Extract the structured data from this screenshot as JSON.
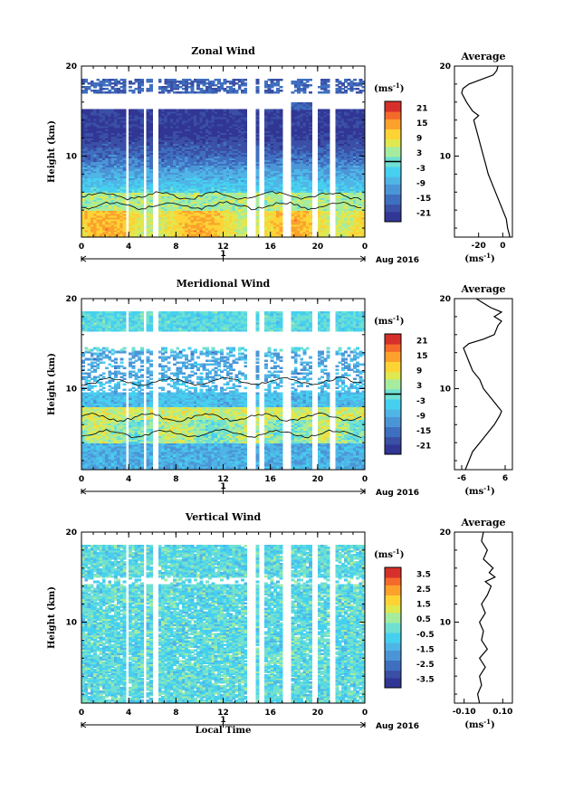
{
  "chart_data": [
    {
      "type": "heatmap",
      "title": "Zonal Wind",
      "xlabel": "",
      "ylabel": "Height (km)",
      "x_ticks": [
        "0",
        "4",
        "8",
        "12",
        "16",
        "20",
        "0"
      ],
      "y_ticks": [
        "20",
        "10"
      ],
      "xlim": [
        0,
        24
      ],
      "ylim": [
        1,
        20
      ],
      "date_axis": {
        "label": "1",
        "month_label": "Aug 2016"
      },
      "colorbar": {
        "unit_label": "(ms",
        "unit_exp": "-1",
        "unit_close": ")",
        "tick_labels": [
          "21",
          "15",
          "9",
          "3",
          "-3",
          "-9",
          "-15",
          "-21"
        ],
        "range": [
          -24,
          24
        ],
        "zero_line": true
      },
      "profile_plot": {
        "title": "Average",
        "xlabel": "(ms",
        "xlabel_exp": "-1",
        "xlabel_close": ")",
        "x_ticks": [
          "-20",
          "0"
        ],
        "xlim": [
          -40,
          8
        ],
        "y_ticks": [
          "20",
          "10"
        ],
        "profile": [
          [
            1,
            6
          ],
          [
            1.5,
            5
          ],
          [
            2,
            4
          ],
          [
            3,
            3
          ],
          [
            4,
            0
          ],
          [
            5,
            -3
          ],
          [
            6,
            -6
          ],
          [
            7,
            -9
          ],
          [
            8,
            -12
          ],
          [
            9,
            -14
          ],
          [
            10,
            -16
          ],
          [
            11,
            -18
          ],
          [
            12,
            -20
          ],
          [
            13,
            -22
          ],
          [
            14,
            -24
          ],
          [
            14.5,
            -20
          ],
          [
            15,
            -25
          ],
          [
            16,
            -30
          ],
          [
            17,
            -34
          ],
          [
            17.5,
            -33
          ],
          [
            18,
            -28
          ],
          [
            18.5,
            -18
          ],
          [
            19,
            -8
          ],
          [
            19.5,
            -5
          ],
          [
            20,
            -4
          ]
        ]
      },
      "contours": true
    },
    {
      "type": "heatmap",
      "title": "Meridional Wind",
      "xlabel": "",
      "ylabel": "Height (km)",
      "x_ticks": [
        "0",
        "4",
        "8",
        "12",
        "16",
        "20",
        "0"
      ],
      "y_ticks": [
        "20",
        "10"
      ],
      "xlim": [
        0,
        24
      ],
      "ylim": [
        1,
        20
      ],
      "date_axis": {
        "label": "1",
        "month_label": "Aug 2016"
      },
      "colorbar": {
        "unit_label": "(ms",
        "unit_exp": "-1",
        "unit_close": ")",
        "tick_labels": [
          "21",
          "15",
          "9",
          "3",
          "-3",
          "-9",
          "-15",
          "-21"
        ],
        "range": [
          -24,
          24
        ],
        "zero_line": true
      },
      "profile_plot": {
        "title": "Average",
        "xlabel": "(ms",
        "xlabel_exp": "-1",
        "xlabel_close": ")",
        "x_ticks": [
          "-6",
          "6"
        ],
        "xlim": [
          -8,
          8
        ],
        "y_ticks": [
          "20",
          "10"
        ],
        "profile": [
          [
            1,
            -5
          ],
          [
            2,
            -4
          ],
          [
            3,
            -3
          ],
          [
            4,
            -1
          ],
          [
            5,
            1
          ],
          [
            6,
            3
          ],
          [
            7,
            4.5
          ],
          [
            7.5,
            5
          ],
          [
            8,
            4
          ],
          [
            9,
            2
          ],
          [
            10,
            0
          ],
          [
            11,
            -1
          ],
          [
            12,
            -3
          ],
          [
            13,
            -4
          ],
          [
            14,
            -5
          ],
          [
            14.5,
            -5.5
          ],
          [
            15,
            -4
          ],
          [
            15.5,
            0
          ],
          [
            16,
            3
          ],
          [
            17,
            4
          ],
          [
            17.5,
            5
          ],
          [
            18,
            3
          ],
          [
            18.5,
            5
          ],
          [
            19,
            2
          ],
          [
            19.5,
            0
          ],
          [
            20,
            -2
          ]
        ]
      },
      "contours": true
    },
    {
      "type": "heatmap",
      "title": "Vertical Wind",
      "xlabel": "Local Time",
      "ylabel": "Height (km)",
      "x_ticks": [
        "0",
        "4",
        "8",
        "12",
        "16",
        "20",
        "0"
      ],
      "y_ticks": [
        "20",
        "10"
      ],
      "xlim": [
        0,
        24
      ],
      "ylim": [
        1,
        20
      ],
      "date_axis": {
        "label": "1",
        "month_label": "Aug 2016"
      },
      "colorbar": {
        "unit_label": "(ms",
        "unit_exp": "-1",
        "unit_close": ")",
        "tick_labels": [
          "3.5",
          "2.5",
          "1.5",
          "0.5",
          "-0.5",
          "-1.5",
          "-2.5",
          "-3.5"
        ],
        "range": [
          -4,
          4
        ],
        "zero_line": false
      },
      "profile_plot": {
        "title": "Average",
        "xlabel": "(ms",
        "xlabel_exp": "-1",
        "xlabel_close": ")",
        "x_ticks": [
          "-0.10",
          "0.10"
        ],
        "xlim": [
          -0.15,
          0.15
        ],
        "y_ticks": [
          "20",
          "10"
        ],
        "profile": [
          [
            1,
            -0.02
          ],
          [
            2,
            -0.03
          ],
          [
            3,
            -0.01
          ],
          [
            4,
            -0.02
          ],
          [
            5,
            0.01
          ],
          [
            6,
            -0.02
          ],
          [
            7,
            0.02
          ],
          [
            8,
            -0.01
          ],
          [
            9,
            0.0
          ],
          [
            10,
            -0.02
          ],
          [
            11,
            0.01
          ],
          [
            12,
            -0.01
          ],
          [
            13,
            0.02
          ],
          [
            14,
            0.04
          ],
          [
            14.5,
            0.01
          ],
          [
            15,
            0.06
          ],
          [
            15.5,
            0.03
          ],
          [
            16,
            0.05
          ],
          [
            17,
            0.0
          ],
          [
            18,
            0.02
          ],
          [
            19,
            -0.01
          ],
          [
            20,
            0.0
          ]
        ]
      },
      "contours": false
    }
  ],
  "colors": {
    "ramp": [
      "#313695",
      "#3a4fa5",
      "#3f6fc0",
      "#4b95d6",
      "#4fb5e6",
      "#46d0f0",
      "#6fe0d2",
      "#a6ec9e",
      "#e0e850",
      "#fdd335",
      "#fba12c",
      "#f46a2a",
      "#d7302a"
    ]
  }
}
